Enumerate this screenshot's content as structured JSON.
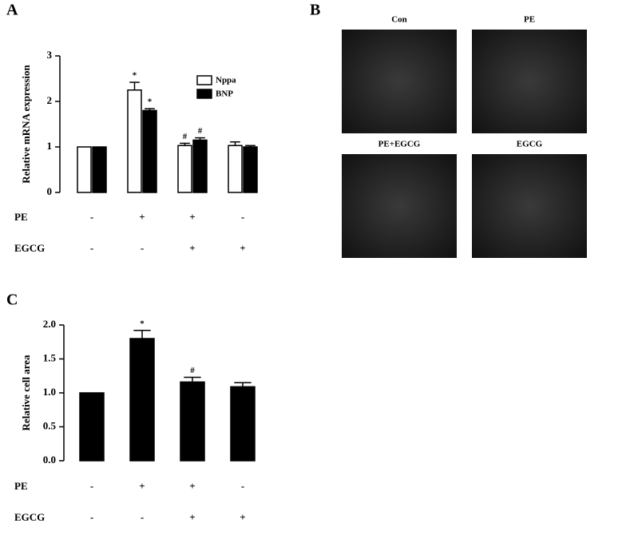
{
  "chart_data": [
    {
      "type": "bar",
      "panel": "A",
      "y_label": "Relative mRNA expression",
      "categories": [
        null,
        null,
        null,
        null
      ],
      "series": [
        {
          "name": "Nppa",
          "color": "#ffffff",
          "values": [
            1.0,
            2.25,
            1.03,
            1.03
          ],
          "errors": [
            0.0,
            0.17,
            0.05,
            0.08
          ],
          "markers": [
            null,
            "*",
            "#",
            null
          ]
        },
        {
          "name": "BNP",
          "color": "#000000",
          "values": [
            1.0,
            1.8,
            1.15,
            1.0
          ],
          "errors": [
            0.0,
            0.04,
            0.05,
            0.03
          ],
          "markers": [
            null,
            "*",
            "#",
            null
          ]
        }
      ],
      "ylim": [
        0,
        3
      ],
      "yticks": [
        0,
        1,
        2,
        3
      ],
      "legend": "upper right",
      "treatments": [
        {
          "name": "PE",
          "signs": [
            "-",
            "+",
            "+",
            "-"
          ]
        },
        {
          "name": "EGCG",
          "signs": [
            "-",
            "-",
            "+",
            "+"
          ]
        }
      ]
    },
    {
      "type": "bar",
      "panel": "C",
      "y_label": "Relative cell area",
      "categories": [
        null,
        null,
        null,
        null
      ],
      "series": [
        {
          "color": "#000000",
          "values": [
            1.0,
            1.8,
            1.16,
            1.09
          ],
          "errors": [
            0.0,
            0.12,
            0.07,
            0.06
          ],
          "markers": [
            null,
            "*",
            "#",
            null
          ]
        }
      ],
      "ylim": [
        0,
        2.0
      ],
      "yticks": [
        {
          "value": 0,
          "label": "0.0"
        },
        {
          "value": 0.5,
          "label": "0.5"
        },
        {
          "value": 1.0,
          "label": "1.0"
        },
        {
          "value": 1.5,
          "label": "1.5"
        },
        {
          "value": 2.0,
          "label": "2.0"
        }
      ],
      "treatments": [
        {
          "name": "PE",
          "signs": [
            "-",
            "+",
            "+",
            "-"
          ]
        },
        {
          "name": "EGCG",
          "signs": [
            "-",
            "-",
            "+",
            "+"
          ]
        }
      ]
    }
  ],
  "micrographs": {
    "panel": "B",
    "images": [
      "Con",
      "PE",
      "PE+EGCG",
      "EGCG"
    ]
  }
}
